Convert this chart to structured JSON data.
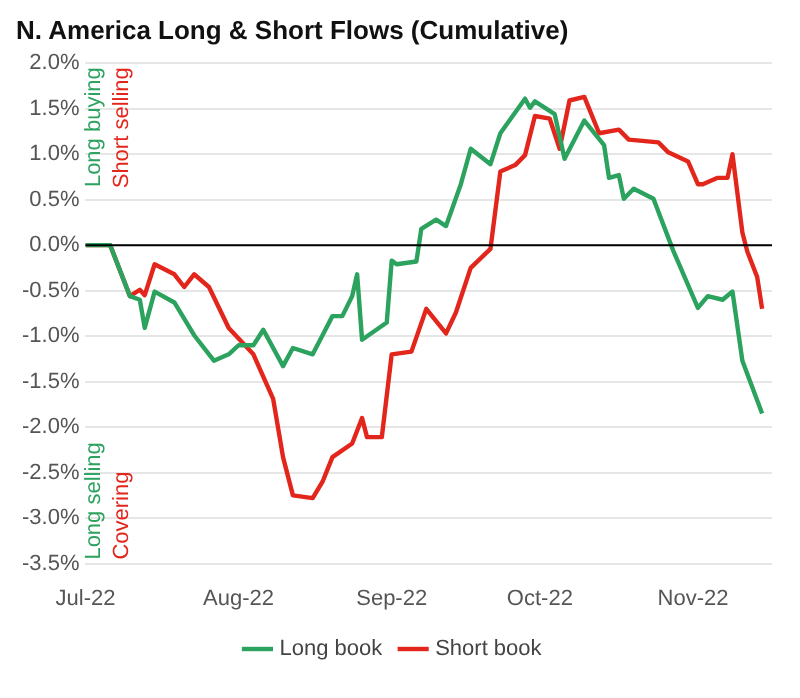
{
  "chart_data": {
    "type": "line",
    "title": "N. America Long & Short Flows (Cumulative)",
    "series": [
      {
        "name": "Long book",
        "color": "#2ca25f",
        "x": [
          "2022-07-01",
          "2022-07-06",
          "2022-07-10",
          "2022-07-12",
          "2022-07-13",
          "2022-07-15",
          "2022-07-19",
          "2022-07-23",
          "2022-07-27",
          "2022-07-30",
          "2022-08-01",
          "2022-08-04",
          "2022-08-06",
          "2022-08-10",
          "2022-08-12",
          "2022-08-16",
          "2022-08-18",
          "2022-08-20",
          "2022-08-22",
          "2022-08-24",
          "2022-08-25",
          "2022-08-26",
          "2022-08-31",
          "2022-09-01",
          "2022-09-02",
          "2022-09-06",
          "2022-09-07",
          "2022-09-10",
          "2022-09-12",
          "2022-09-15",
          "2022-09-17",
          "2022-09-21",
          "2022-09-23",
          "2022-09-28",
          "2022-09-29",
          "2022-09-30",
          "2022-10-04",
          "2022-10-06",
          "2022-10-10",
          "2022-10-14",
          "2022-10-15",
          "2022-10-17",
          "2022-10-18",
          "2022-10-20",
          "2022-10-24",
          "2022-10-28",
          "2022-11-02",
          "2022-11-04",
          "2022-11-07",
          "2022-11-09",
          "2022-11-11",
          "2022-11-15"
        ],
        "values": [
          0,
          0,
          -0.56,
          -0.6,
          -0.91,
          -0.51,
          -0.63,
          -0.99,
          -1.27,
          -1.2,
          -1.1,
          -1.1,
          -0.93,
          -1.33,
          -1.13,
          -1.2,
          -0.99,
          -0.78,
          -0.78,
          -0.56,
          -0.32,
          -1.04,
          -0.85,
          -0.17,
          -0.21,
          -0.18,
          0.18,
          0.28,
          0.21,
          0.67,
          1.06,
          0.89,
          1.23,
          1.61,
          1.51,
          1.58,
          1.44,
          0.95,
          1.37,
          1.1,
          0.74,
          0.77,
          0.51,
          0.62,
          0.51,
          -0.06,
          -0.69,
          -0.56,
          -0.6,
          -0.51,
          -1.27,
          -1.85
        ]
      },
      {
        "name": "Short book",
        "color": "#e3261c",
        "x": [
          "2022-07-01",
          "2022-07-06",
          "2022-07-10",
          "2022-07-12",
          "2022-07-13",
          "2022-07-15",
          "2022-07-19",
          "2022-07-21",
          "2022-07-23",
          "2022-07-26",
          "2022-07-30",
          "2022-08-04",
          "2022-08-08",
          "2022-08-10",
          "2022-08-12",
          "2022-08-16",
          "2022-08-18",
          "2022-08-20",
          "2022-08-24",
          "2022-08-26",
          "2022-08-27",
          "2022-08-30",
          "2022-09-01",
          "2022-09-05",
          "2022-09-08",
          "2022-09-12",
          "2022-09-14",
          "2022-09-17",
          "2022-09-21",
          "2022-09-23",
          "2022-09-26",
          "2022-09-28",
          "2022-09-30",
          "2022-10-03",
          "2022-10-05",
          "2022-10-07",
          "2022-10-10",
          "2022-10-13",
          "2022-10-17",
          "2022-10-19",
          "2022-10-25",
          "2022-10-27",
          "2022-10-31",
          "2022-11-02",
          "2022-11-03",
          "2022-11-06",
          "2022-11-08",
          "2022-11-09",
          "2022-11-11",
          "2022-11-12",
          "2022-11-14",
          "2022-11-15"
        ],
        "values": [
          0,
          0,
          -0.56,
          -0.49,
          -0.55,
          -0.21,
          -0.32,
          -0.46,
          -0.32,
          -0.46,
          -0.91,
          -1.2,
          -1.69,
          -2.33,
          -2.75,
          -2.78,
          -2.6,
          -2.33,
          -2.18,
          -1.9,
          -2.11,
          -2.11,
          -1.2,
          -1.17,
          -0.7,
          -0.97,
          -0.74,
          -0.25,
          -0.04,
          0.81,
          0.88,
          0.99,
          1.42,
          1.39,
          1.06,
          1.59,
          1.63,
          1.23,
          1.27,
          1.16,
          1.13,
          1.02,
          0.92,
          0.67,
          0.67,
          0.74,
          0.74,
          1.0,
          0.14,
          -0.07,
          -0.35,
          -0.7
        ]
      }
    ],
    "xlim": [
      "2022-07-01",
      "2022-11-17"
    ],
    "xticks": [
      {
        "value": "2022-07-01",
        "label": "Jul-22"
      },
      {
        "value": "2022-08-01",
        "label": "Aug-22"
      },
      {
        "value": "2022-09-01",
        "label": "Sep-22"
      },
      {
        "value": "2022-10-01",
        "label": "Oct-22"
      },
      {
        "value": "2022-11-01",
        "label": "Nov-22"
      }
    ],
    "ylim": [
      -3.5,
      2
    ],
    "yticks": [
      {
        "value": -3.5,
        "label": "-3.5%"
      },
      {
        "value": -3,
        "label": "-3.0%"
      },
      {
        "value": -2.5,
        "label": "-2.5%"
      },
      {
        "value": -2,
        "label": "-2.0%"
      },
      {
        "value": -1.5,
        "label": "-1.5%"
      },
      {
        "value": -1,
        "label": "-1.0%"
      },
      {
        "value": -0.5,
        "label": "-0.5%"
      },
      {
        "value": 0,
        "label": "0.0%"
      },
      {
        "value": 0.5,
        "label": "0.5%"
      },
      {
        "value": 1,
        "label": "1.0%"
      },
      {
        "value": 1.5,
        "label": "1.5%"
      },
      {
        "value": 2,
        "label": "2.0%"
      }
    ],
    "ref_lines": [
      {
        "axis": "y",
        "value": 0,
        "color": "#000000"
      }
    ],
    "annotations": [
      "Long buying",
      "Short selling",
      "Long selling",
      "Covering"
    ],
    "grid": "y",
    "legend": "bottom",
    "marker": "none",
    "line_style": "solid"
  }
}
